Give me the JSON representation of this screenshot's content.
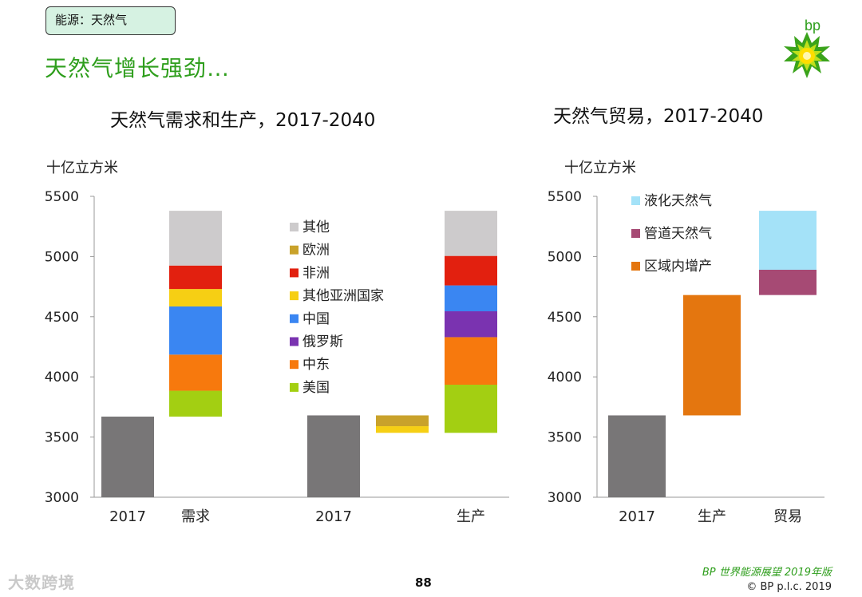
{
  "tag": "能源：天然气",
  "page_title": "天然气增长强劲…",
  "brand": "bp",
  "page_number": "88",
  "footer": {
    "publication": "BP 世界能源展望 2019年版",
    "copyright": "© BP p.l.c. 2019"
  },
  "watermark": "大数跨境",
  "colors": {
    "base": "#787677",
    "其他": "#cdcbcc",
    "欧洲": "#c9a22b",
    "非洲": "#e2200f",
    "其他亚洲国家": "#f6cf14",
    "中国": "#3a86f2",
    "俄罗斯": "#7a33b0",
    "中东": "#f7790d",
    "美国": "#a3cf12",
    "液化天然气": "#a4e2f8",
    "管道天然气": "#a64a74",
    "区域内增产": "#e4760f"
  },
  "chart_data": [
    {
      "type": "bar",
      "title": "天然气需求和生产，2017-2040",
      "ylabel": "十亿立方米",
      "ylim": [
        3000,
        5500
      ],
      "yticks": [
        3000,
        3500,
        4000,
        4500,
        5000,
        5500
      ],
      "legend": [
        "其他",
        "欧洲",
        "非洲",
        "其他亚洲国家",
        "中国",
        "俄罗斯",
        "中东",
        "美国"
      ],
      "bars": [
        {
          "category": "2017",
          "segments": [
            {
              "series": "base",
              "from": 3000,
              "to": 3670
            }
          ]
        },
        {
          "category": "需求",
          "segments": [
            {
              "series": "美国",
              "from": 3670,
              "to": 3885
            },
            {
              "series": "中东",
              "from": 3885,
              "to": 4185
            },
            {
              "series": "中国",
              "from": 4185,
              "to": 4585
            },
            {
              "series": "其他亚洲国家",
              "from": 4585,
              "to": 4730
            },
            {
              "series": "非洲",
              "from": 4730,
              "to": 4925
            },
            {
              "series": "其他",
              "from": 4925,
              "to": 5380
            }
          ]
        },
        {
          "category": "2017",
          "segments": [
            {
              "series": "base",
              "from": 3000,
              "to": 3680
            }
          ]
        },
        {
          "category": "",
          "segments": [
            {
              "series": "欧洲",
              "from": 3590,
              "to": 3680
            },
            {
              "series": "其他亚洲国家",
              "from": 3535,
              "to": 3590
            }
          ]
        },
        {
          "category": "生产",
          "segments": [
            {
              "series": "美国",
              "from": 3535,
              "to": 3935
            },
            {
              "series": "中东",
              "from": 3935,
              "to": 4330
            },
            {
              "series": "俄罗斯",
              "from": 4330,
              "to": 4545
            },
            {
              "series": "中国",
              "from": 4545,
              "to": 4760
            },
            {
              "series": "非洲",
              "from": 4760,
              "to": 5005
            },
            {
              "series": "其他",
              "from": 5005,
              "to": 5380
            }
          ]
        }
      ]
    },
    {
      "type": "bar",
      "title": "天然气贸易，2017-2040",
      "ylabel": "十亿立方米",
      "ylim": [
        3000,
        5500
      ],
      "yticks": [
        3000,
        3500,
        4000,
        4500,
        5000,
        5500
      ],
      "legend": [
        "液化天然气",
        "管道天然气",
        "区域内增产"
      ],
      "bars": [
        {
          "category": "2017",
          "segments": [
            {
              "series": "base",
              "from": 3000,
              "to": 3680
            }
          ]
        },
        {
          "category": "生产",
          "segments": [
            {
              "series": "区域内增产",
              "from": 3680,
              "to": 4680
            }
          ]
        },
        {
          "category": "贸易",
          "segments": [
            {
              "series": "管道天然气",
              "from": 4680,
              "to": 4890
            },
            {
              "series": "液化天然气",
              "from": 4890,
              "to": 5380
            }
          ]
        }
      ]
    }
  ]
}
